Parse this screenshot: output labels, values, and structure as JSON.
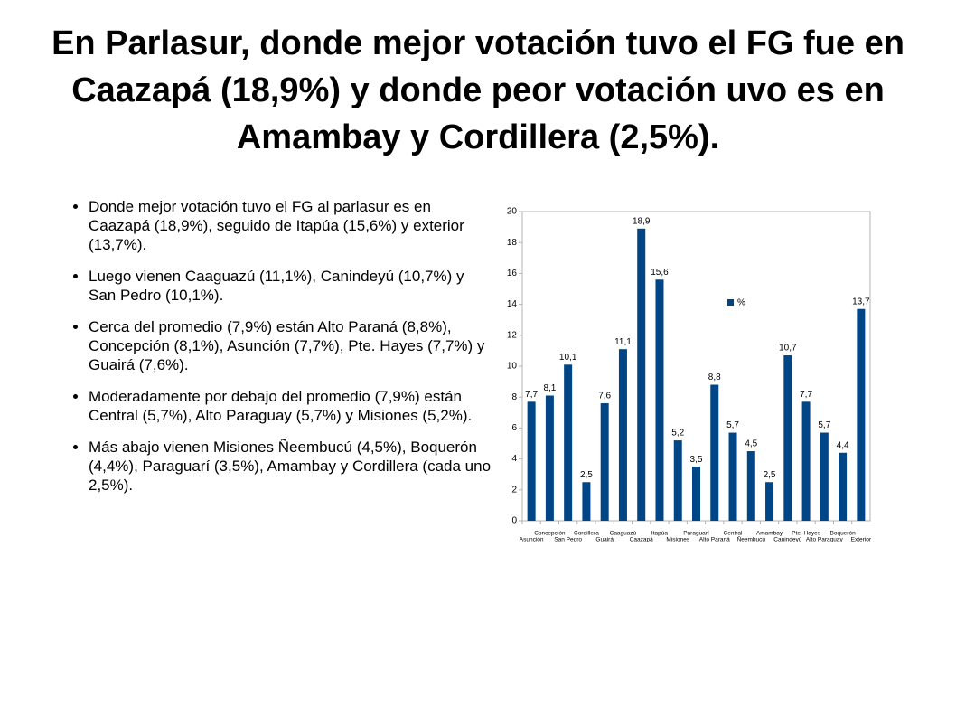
{
  "title": "En Parlasur, donde mejor votación tuvo el FG fue en Caazapá (18,9%) y donde peor votación uvo es en Amambay y Cordillera (2,5%).",
  "bullets": [
    "Donde mejor votación tuvo el FG al parlasur es en Caazapá (18,9%), seguido de Itapúa (15,6%) y exterior (13,7%).",
    "Luego vienen Caaguazú (11,1%), Canindeyú (10,7%) y San Pedro (10,1%).",
    "Cerca del promedio (7,9%) están Alto Paraná (8,8%), Concepción (8,1%), Asunción (7,7%), Pte. Hayes (7,7%) y Guairá (7,6%).",
    "Moderadamente por debajo del promedio (7,9%) están Central (5,7%), Alto Paraguay (5,7%) y Misiones (5,2%).",
    "Más abajo vienen Misiones Ñeembucú (4,5%), Boquerón (4,4%), Paraguarí (3,5%), Amambay y Cordillera (cada uno 2,5%)."
  ],
  "chart_data": {
    "type": "bar",
    "categories": [
      "Asunción",
      "Concepción",
      "San Pedro",
      "Cordillera",
      "Guairá",
      "Caaguazú",
      "Caazapá",
      "Itapúa",
      "Misiones",
      "Paraguarí",
      "Alto Paraná",
      "Central",
      "Ñeembucú",
      "Amambay",
      "Canindeyú",
      "Pte. Hayes",
      "Alto Paraguay",
      "Boquerón",
      "Exterior"
    ],
    "series": [
      {
        "name": "%",
        "color": "#004586",
        "values": [
          7.7,
          8.1,
          10.1,
          2.5,
          7.6,
          11.1,
          18.9,
          15.6,
          5.2,
          3.5,
          8.8,
          5.7,
          4.5,
          2.5,
          10.7,
          7.7,
          5.7,
          4.4,
          13.7
        ],
        "value_labels": [
          "7,7",
          "8,1",
          "10,1",
          "2,5",
          "7,6",
          "11,1",
          "18,9",
          "15,6",
          "5,2",
          "3,5",
          "8,8",
          "5,7",
          "4,5",
          "2,5",
          "10,7",
          "7,7",
          "5,7",
          "4,4",
          "13,7"
        ]
      }
    ],
    "ylim": [
      0,
      20
    ],
    "yticks": [
      0,
      2,
      4,
      6,
      8,
      10,
      12,
      14,
      16,
      18,
      20
    ],
    "grid": false
  }
}
